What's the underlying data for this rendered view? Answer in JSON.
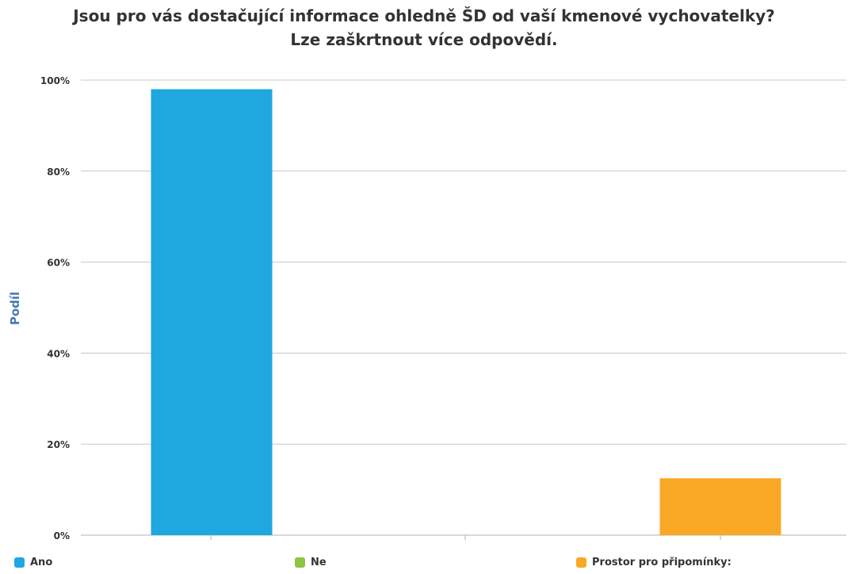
{
  "chart_data": {
    "type": "bar",
    "title": "Jsou pro vás dostačující informace ohledně ŠD od vaší kmenové vychovatelky?",
    "subtitle": "Lze zaškrtnout více odpovědí.",
    "ylabel": "Podíl",
    "xlabel": "",
    "ylim": [
      0,
      100
    ],
    "y_ticks": [
      {
        "value": 0,
        "label": "0%"
      },
      {
        "value": 20,
        "label": "20%"
      },
      {
        "value": 40,
        "label": "40%"
      },
      {
        "value": 60,
        "label": "60%"
      },
      {
        "value": 80,
        "label": "80%"
      },
      {
        "value": 100,
        "label": "100%"
      }
    ],
    "grid": true,
    "legend_position": "bottom",
    "series": [
      {
        "name": "Ano",
        "value": 98,
        "color": "#1fa7df"
      },
      {
        "name": "Ne",
        "value": 0,
        "color": "#8cc63f"
      },
      {
        "name": "Prostor pro připomínky:",
        "value": 12.5,
        "color": "#f9a825"
      }
    ]
  },
  "colors": {
    "axis_label": "#4a7ab0",
    "grid": "#c8c8c8",
    "text": "#333333"
  }
}
